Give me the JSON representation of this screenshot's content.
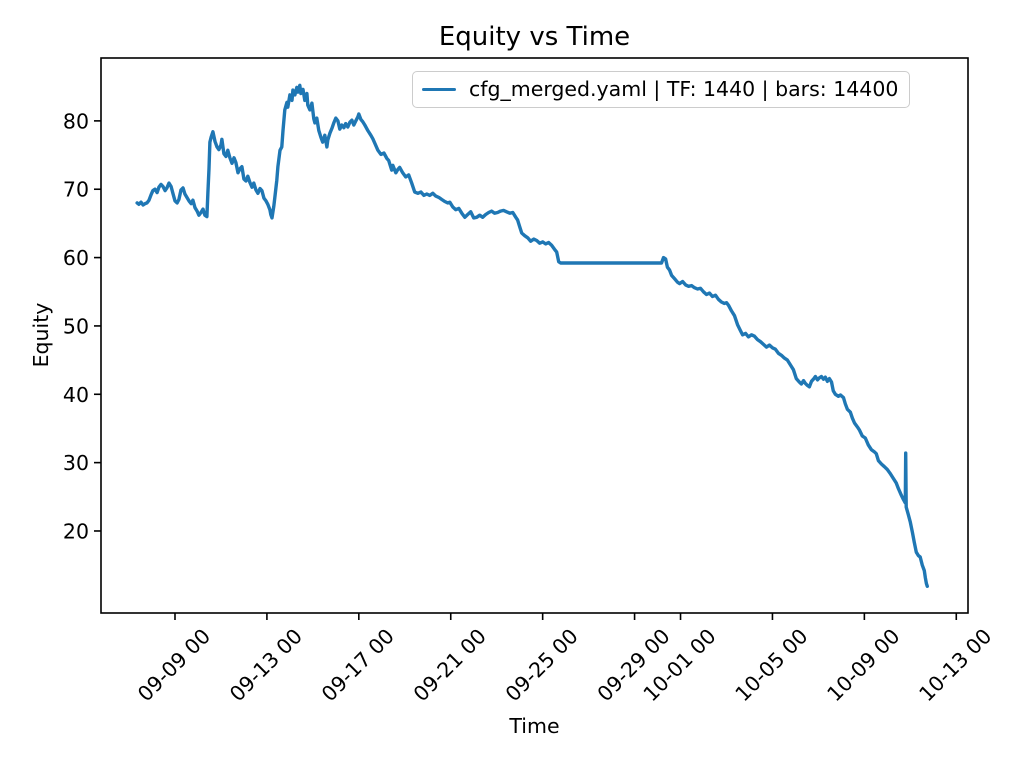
{
  "figure": {
    "background": "#ffffff"
  },
  "colors": {
    "axes": "#000000",
    "text": "#000000",
    "legend_border": "#cccccc",
    "line": "#1f77b4"
  },
  "chart_data": {
    "type": "line",
    "title": "Equity vs Time",
    "xlabel": "Time",
    "ylabel": "Equity",
    "grid": false,
    "legend_position": "upper right",
    "x_axis": {
      "t_unit": "days since 09-09 00:00",
      "xlim": [
        -3.22,
        34.51
      ],
      "ticks": [
        {
          "label": "09-09 00",
          "t": 0
        },
        {
          "label": "09-13 00",
          "t": 4
        },
        {
          "label": "09-17 00",
          "t": 8
        },
        {
          "label": "09-21 00",
          "t": 12
        },
        {
          "label": "09-25 00",
          "t": 16
        },
        {
          "label": "09-29 00",
          "t": 20
        },
        {
          "label": "10-01 00",
          "t": 22
        },
        {
          "label": "10-05 00",
          "t": 26
        },
        {
          "label": "10-09 00",
          "t": 30
        },
        {
          "label": "10-13 00",
          "t": 34
        }
      ]
    },
    "y_axis": {
      "ylim": [
        8.0,
        89.2
      ],
      "ticks": [
        20,
        30,
        40,
        50,
        60,
        70,
        80
      ]
    },
    "series": [
      {
        "name": "cfg_merged.yaml | TF: 1440 | bars: 14400",
        "color": "#1f77b4",
        "line_width": 2,
        "points": [
          [
            -1.65,
            68.0
          ],
          [
            -1.57,
            67.8
          ],
          [
            -1.48,
            68.1
          ],
          [
            -1.39,
            67.7
          ],
          [
            -1.3,
            67.9
          ],
          [
            -1.22,
            68.0
          ],
          [
            -1.13,
            68.4
          ],
          [
            -1.04,
            69.2
          ],
          [
            -0.96,
            69.8
          ],
          [
            -0.87,
            70.0
          ],
          [
            -0.78,
            69.5
          ],
          [
            -0.7,
            70.3
          ],
          [
            -0.61,
            70.7
          ],
          [
            -0.52,
            70.4
          ],
          [
            -0.43,
            69.8
          ],
          [
            -0.35,
            70.2
          ],
          [
            -0.26,
            70.9
          ],
          [
            -0.17,
            70.4
          ],
          [
            -0.09,
            69.4
          ],
          [
            0.0,
            68.3
          ],
          [
            0.09,
            68.0
          ],
          [
            0.17,
            68.5
          ],
          [
            0.26,
            69.9
          ],
          [
            0.35,
            70.2
          ],
          [
            0.43,
            69.3
          ],
          [
            0.52,
            68.8
          ],
          [
            0.61,
            68.3
          ],
          [
            0.7,
            67.9
          ],
          [
            0.78,
            68.4
          ],
          [
            0.87,
            67.3
          ],
          [
            0.96,
            66.8
          ],
          [
            1.04,
            66.2
          ],
          [
            1.13,
            66.6
          ],
          [
            1.22,
            67.1
          ],
          [
            1.3,
            66.2
          ],
          [
            1.39,
            66.0
          ],
          [
            1.43,
            69.5
          ],
          [
            1.48,
            73.0
          ],
          [
            1.52,
            76.9
          ],
          [
            1.57,
            77.6
          ],
          [
            1.65,
            78.4
          ],
          [
            1.74,
            77.0
          ],
          [
            1.83,
            76.2
          ],
          [
            1.91,
            75.8
          ],
          [
            2.0,
            76.5
          ],
          [
            2.04,
            77.3
          ],
          [
            2.13,
            75.2
          ],
          [
            2.22,
            74.8
          ],
          [
            2.3,
            75.7
          ],
          [
            2.39,
            74.6
          ],
          [
            2.48,
            73.8
          ],
          [
            2.57,
            74.6
          ],
          [
            2.65,
            73.9
          ],
          [
            2.74,
            72.4
          ],
          [
            2.83,
            73.0
          ],
          [
            2.91,
            73.3
          ],
          [
            3.0,
            71.5
          ],
          [
            3.09,
            71.2
          ],
          [
            3.17,
            71.9
          ],
          [
            3.26,
            71.0
          ],
          [
            3.35,
            70.3
          ],
          [
            3.43,
            70.9
          ],
          [
            3.52,
            69.9
          ],
          [
            3.61,
            69.4
          ],
          [
            3.7,
            70.1
          ],
          [
            3.78,
            69.8
          ],
          [
            3.87,
            68.7
          ],
          [
            3.96,
            68.3
          ],
          [
            4.04,
            67.8
          ],
          [
            4.13,
            67.0
          ],
          [
            4.17,
            66.3
          ],
          [
            4.22,
            65.8
          ],
          [
            4.3,
            67.5
          ],
          [
            4.35,
            69.0
          ],
          [
            4.43,
            71.3
          ],
          [
            4.48,
            73.3
          ],
          [
            4.57,
            75.7
          ],
          [
            4.65,
            76.2
          ],
          [
            4.7,
            78.6
          ],
          [
            4.78,
            81.6
          ],
          [
            4.87,
            82.7
          ],
          [
            4.91,
            82.0
          ],
          [
            5.0,
            83.8
          ],
          [
            5.09,
            83.0
          ],
          [
            5.13,
            84.5
          ],
          [
            5.22,
            83.8
          ],
          [
            5.3,
            84.9
          ],
          [
            5.35,
            84.2
          ],
          [
            5.43,
            85.2
          ],
          [
            5.48,
            84.0
          ],
          [
            5.57,
            84.6
          ],
          [
            5.65,
            83.0
          ],
          [
            5.74,
            84.0
          ],
          [
            5.78,
            82.3
          ],
          [
            5.87,
            81.6
          ],
          [
            5.96,
            82.6
          ],
          [
            6.04,
            80.3
          ],
          [
            6.09,
            79.7
          ],
          [
            6.17,
            80.4
          ],
          [
            6.26,
            78.6
          ],
          [
            6.35,
            77.6
          ],
          [
            6.43,
            76.9
          ],
          [
            6.52,
            77.9
          ],
          [
            6.61,
            76.2
          ],
          [
            6.65,
            77.2
          ],
          [
            6.74,
            78.2
          ],
          [
            6.83,
            78.9
          ],
          [
            6.91,
            79.7
          ],
          [
            7.0,
            80.4
          ],
          [
            7.09,
            80.0
          ],
          [
            7.17,
            78.8
          ],
          [
            7.26,
            79.4
          ],
          [
            7.35,
            79.0
          ],
          [
            7.43,
            79.6
          ],
          [
            7.52,
            79.1
          ],
          [
            7.61,
            79.8
          ],
          [
            7.7,
            80.1
          ],
          [
            7.78,
            79.4
          ],
          [
            7.87,
            80.0
          ],
          [
            7.96,
            80.6
          ],
          [
            8.0,
            81.0
          ],
          [
            8.09,
            80.2
          ],
          [
            8.17,
            79.9
          ],
          [
            8.26,
            79.4
          ],
          [
            8.39,
            78.6
          ],
          [
            8.52,
            77.9
          ],
          [
            8.61,
            77.4
          ],
          [
            8.7,
            76.7
          ],
          [
            8.83,
            75.7
          ],
          [
            8.96,
            75.1
          ],
          [
            9.09,
            75.3
          ],
          [
            9.22,
            74.5
          ],
          [
            9.3,
            74.2
          ],
          [
            9.43,
            72.8
          ],
          [
            9.48,
            73.5
          ],
          [
            9.61,
            72.4
          ],
          [
            9.7,
            72.9
          ],
          [
            9.78,
            73.2
          ],
          [
            9.91,
            72.4
          ],
          [
            10.04,
            71.8
          ],
          [
            10.17,
            72.1
          ],
          [
            10.3,
            70.9
          ],
          [
            10.43,
            69.6
          ],
          [
            10.57,
            69.4
          ],
          [
            10.7,
            69.6
          ],
          [
            10.83,
            69.1
          ],
          [
            10.96,
            69.3
          ],
          [
            11.09,
            69.1
          ],
          [
            11.22,
            69.4
          ],
          [
            11.35,
            69.0
          ],
          [
            11.48,
            68.8
          ],
          [
            11.61,
            68.5
          ],
          [
            11.74,
            68.2
          ],
          [
            11.87,
            68.0
          ],
          [
            11.96,
            68.1
          ],
          [
            12.09,
            67.4
          ],
          [
            12.22,
            67.0
          ],
          [
            12.35,
            67.2
          ],
          [
            12.48,
            66.5
          ],
          [
            12.61,
            65.9
          ],
          [
            12.74,
            66.3
          ],
          [
            12.87,
            66.7
          ],
          [
            13.0,
            65.8
          ],
          [
            13.13,
            65.9
          ],
          [
            13.26,
            66.2
          ],
          [
            13.39,
            65.9
          ],
          [
            13.52,
            66.3
          ],
          [
            13.65,
            66.6
          ],
          [
            13.78,
            66.8
          ],
          [
            13.91,
            66.5
          ],
          [
            14.04,
            66.6
          ],
          [
            14.17,
            66.8
          ],
          [
            14.3,
            66.9
          ],
          [
            14.43,
            66.7
          ],
          [
            14.57,
            66.5
          ],
          [
            14.7,
            66.6
          ],
          [
            14.83,
            65.9
          ],
          [
            14.91,
            65.5
          ],
          [
            15.0,
            64.5
          ],
          [
            15.09,
            63.6
          ],
          [
            15.22,
            63.2
          ],
          [
            15.35,
            62.9
          ],
          [
            15.48,
            62.4
          ],
          [
            15.61,
            62.7
          ],
          [
            15.74,
            62.5
          ],
          [
            15.87,
            62.1
          ],
          [
            16.0,
            62.3
          ],
          [
            16.13,
            62.0
          ],
          [
            16.26,
            62.2
          ],
          [
            16.39,
            61.8
          ],
          [
            16.52,
            61.2
          ],
          [
            16.61,
            60.8
          ],
          [
            16.7,
            59.4
          ],
          [
            16.78,
            59.2
          ],
          [
            21.17,
            59.2
          ],
          [
            21.26,
            60.0
          ],
          [
            21.35,
            59.8
          ],
          [
            21.43,
            58.6
          ],
          [
            21.52,
            58.2
          ],
          [
            21.61,
            57.4
          ],
          [
            21.74,
            56.9
          ],
          [
            21.87,
            56.4
          ],
          [
            21.96,
            56.2
          ],
          [
            22.09,
            56.5
          ],
          [
            22.22,
            56.0
          ],
          [
            22.35,
            55.8
          ],
          [
            22.48,
            55.9
          ],
          [
            22.61,
            55.6
          ],
          [
            22.74,
            55.4
          ],
          [
            22.87,
            55.5
          ],
          [
            23.0,
            55.0
          ],
          [
            23.13,
            54.6
          ],
          [
            23.26,
            54.8
          ],
          [
            23.39,
            54.3
          ],
          [
            23.52,
            54.5
          ],
          [
            23.65,
            53.9
          ],
          [
            23.78,
            53.5
          ],
          [
            23.91,
            53.3
          ],
          [
            24.0,
            53.4
          ],
          [
            24.09,
            53.0
          ],
          [
            24.22,
            52.2
          ],
          [
            24.35,
            51.5
          ],
          [
            24.48,
            50.2
          ],
          [
            24.61,
            49.3
          ],
          [
            24.7,
            48.7
          ],
          [
            24.83,
            48.9
          ],
          [
            24.96,
            48.4
          ],
          [
            25.09,
            48.7
          ],
          [
            25.22,
            48.5
          ],
          [
            25.35,
            48.0
          ],
          [
            25.48,
            47.7
          ],
          [
            25.61,
            47.3
          ],
          [
            25.74,
            46.9
          ],
          [
            25.87,
            47.2
          ],
          [
            26.0,
            46.8
          ],
          [
            26.13,
            46.6
          ],
          [
            26.26,
            46.0
          ],
          [
            26.39,
            45.7
          ],
          [
            26.52,
            45.3
          ],
          [
            26.65,
            45.0
          ],
          [
            26.78,
            44.3
          ],
          [
            26.91,
            43.6
          ],
          [
            27.04,
            42.3
          ],
          [
            27.17,
            41.8
          ],
          [
            27.26,
            41.5
          ],
          [
            27.35,
            42.0
          ],
          [
            27.43,
            41.6
          ],
          [
            27.52,
            41.3
          ],
          [
            27.61,
            41.1
          ],
          [
            27.7,
            41.9
          ],
          [
            27.78,
            42.2
          ],
          [
            27.87,
            42.6
          ],
          [
            27.96,
            42.1
          ],
          [
            28.04,
            42.4
          ],
          [
            28.13,
            42.6
          ],
          [
            28.22,
            42.2
          ],
          [
            28.3,
            42.5
          ],
          [
            28.39,
            41.9
          ],
          [
            28.48,
            42.3
          ],
          [
            28.57,
            41.8
          ],
          [
            28.65,
            40.5
          ],
          [
            28.74,
            40.0
          ],
          [
            28.87,
            39.7
          ],
          [
            28.96,
            39.9
          ],
          [
            29.09,
            39.5
          ],
          [
            29.17,
            38.6
          ],
          [
            29.26,
            37.8
          ],
          [
            29.39,
            37.4
          ],
          [
            29.48,
            36.5
          ],
          [
            29.57,
            35.8
          ],
          [
            29.7,
            35.2
          ],
          [
            29.78,
            34.8
          ],
          [
            29.91,
            33.9
          ],
          [
            30.04,
            33.6
          ],
          [
            30.17,
            32.6
          ],
          [
            30.3,
            31.9
          ],
          [
            30.43,
            31.6
          ],
          [
            30.52,
            31.3
          ],
          [
            30.61,
            30.3
          ],
          [
            30.74,
            29.8
          ],
          [
            30.87,
            29.4
          ],
          [
            31.0,
            29.0
          ],
          [
            31.13,
            28.4
          ],
          [
            31.26,
            27.7
          ],
          [
            31.39,
            27.0
          ],
          [
            31.48,
            26.2
          ],
          [
            31.61,
            25.2
          ],
          [
            31.7,
            24.6
          ],
          [
            31.78,
            24.1
          ],
          [
            31.8,
            31.4
          ],
          [
            31.82,
            23.5
          ],
          [
            31.91,
            22.4
          ],
          [
            32.0,
            21.3
          ],
          [
            32.09,
            19.8
          ],
          [
            32.17,
            18.4
          ],
          [
            32.26,
            16.9
          ],
          [
            32.35,
            16.4
          ],
          [
            32.43,
            16.2
          ],
          [
            32.52,
            15.0
          ],
          [
            32.61,
            14.2
          ],
          [
            32.65,
            13.2
          ],
          [
            32.7,
            12.3
          ],
          [
            32.74,
            11.9
          ]
        ]
      }
    ]
  }
}
